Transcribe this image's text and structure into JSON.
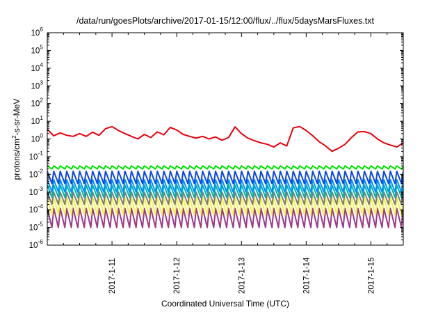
{
  "chart_data": {
    "type": "line",
    "title": "/data/run/goesPlots/archive/2017-01-15/12:00/flux/../flux/5daysMarsFluxes.txt",
    "xlabel": "Coordinated Universal Time (UTC)",
    "ylabel_parts": [
      "protons/cm",
      "2",
      "-s-sr-MeV"
    ],
    "y_scale": "log",
    "ylim": [
      1e-06,
      1000000.0
    ],
    "xlim": [
      "2017-01-10 00:00",
      "2017-01-15 12:00"
    ],
    "y_ticks": [
      {
        "base": "10",
        "exp": "-6"
      },
      {
        "base": "10",
        "exp": "-5"
      },
      {
        "base": "10",
        "exp": "-4"
      },
      {
        "base": "10",
        "exp": "-3"
      },
      {
        "base": "10",
        "exp": "-2"
      },
      {
        "base": "10",
        "exp": "-1"
      },
      {
        "base": "10",
        "exp": "0"
      },
      {
        "base": "10",
        "exp": "1"
      },
      {
        "base": "10",
        "exp": "2"
      },
      {
        "base": "10",
        "exp": "3"
      },
      {
        "base": "10",
        "exp": "4"
      },
      {
        "base": "10",
        "exp": "5"
      },
      {
        "base": "10",
        "exp": "6"
      }
    ],
    "x_ticks": [
      "2017-1-11",
      "2017-1-12",
      "2017-1-13",
      "2017-1-14",
      "2017-1-15"
    ],
    "grid": false,
    "legend": "none",
    "x_days": [
      0.0,
      0.1,
      0.2,
      0.3,
      0.4,
      0.5,
      0.6,
      0.7,
      0.8,
      0.9,
      1.0,
      1.1,
      1.2,
      1.3,
      1.4,
      1.5,
      1.6,
      1.7,
      1.8,
      1.9,
      2.0,
      2.1,
      2.2,
      2.3,
      2.4,
      2.5,
      2.6,
      2.7,
      2.8,
      2.9,
      3.0,
      3.1,
      3.2,
      3.3,
      3.4,
      3.5,
      3.6,
      3.7,
      3.8,
      3.9,
      4.0,
      4.1,
      4.2,
      4.3,
      4.4,
      4.5,
      4.6,
      4.7,
      4.8,
      4.9,
      5.0,
      5.1,
      5.2,
      5.3,
      5.4,
      5.5
    ],
    "series": [
      {
        "color": "#e8000b",
        "style": "stepped",
        "values": [
          3.5,
          1.5,
          2.2,
          1.6,
          1.4,
          2.0,
          1.4,
          2.4,
          1.6,
          3.8,
          5.0,
          3.0,
          2.0,
          1.4,
          1.0,
          1.8,
          1.2,
          2.5,
          1.7,
          4.5,
          3.2,
          1.8,
          1.4,
          1.1,
          1.4,
          1.0,
          1.3,
          0.85,
          1.2,
          4.8,
          2.0,
          1.1,
          0.8,
          0.6,
          0.5,
          0.35,
          0.6,
          0.4,
          4.2,
          5.0,
          3.0,
          1.5,
          0.7,
          0.4,
          0.2,
          0.3,
          0.5,
          1.2,
          2.5,
          2.6,
          2.0,
          1.0,
          0.6,
          0.45,
          0.35,
          0.6
        ]
      },
      {
        "color": "#00e400",
        "style": "sawtooth",
        "values": [
          0.02,
          0.03
        ]
      },
      {
        "color": "#0c47e6",
        "style": "sawtooth",
        "values": [
          0.003,
          0.015
        ]
      },
      {
        "color": "#0090ff",
        "style": "sawtooth",
        "values": [
          0.001,
          0.005
        ]
      },
      {
        "color": "#00b6a8",
        "style": "sawtooth",
        "values": [
          0.0005,
          0.0025
        ]
      },
      {
        "color": "#7c7c7c",
        "style": "sawtooth",
        "values": [
          0.0002,
          0.001
        ]
      },
      {
        "color": "#f6f34a",
        "style": "sawtooth",
        "values": [
          5e-05,
          0.0005
        ]
      },
      {
        "color": "#9a3a8a",
        "style": "sawtooth",
        "values": [
          1e-05,
          0.00012
        ]
      }
    ]
  }
}
